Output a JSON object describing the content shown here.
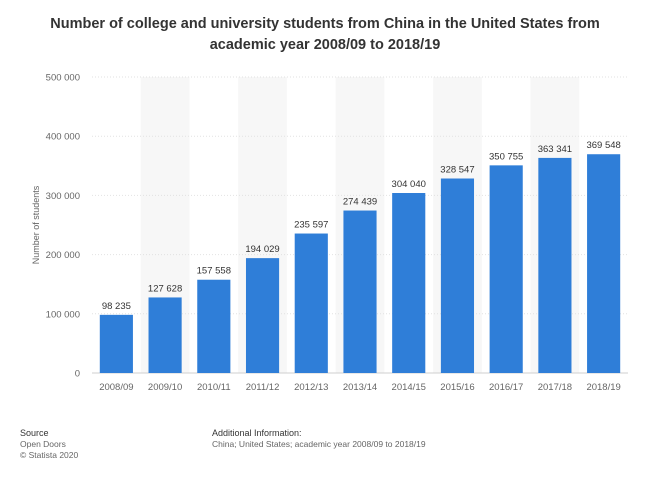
{
  "chart_data": {
    "type": "bar",
    "title": "Number of college and university students from China in the United States from academic year 2008/09 to 2018/19",
    "ylabel": "Number of students",
    "xlabel": "",
    "categories": [
      "2008/09",
      "2009/10",
      "2010/11",
      "2011/12",
      "2012/13",
      "2013/14",
      "2014/15",
      "2015/16",
      "2016/17",
      "2017/18",
      "2018/19"
    ],
    "values": [
      98235,
      127628,
      157558,
      194029,
      235597,
      274439,
      304040,
      328547,
      350755,
      363341,
      369548
    ],
    "value_labels": [
      "98 235",
      "127 628",
      "157 558",
      "194 029",
      "235 597",
      "274 439",
      "304 040",
      "328 547",
      "350 755",
      "363 341",
      "369 548"
    ],
    "ylim": [
      0,
      500000
    ],
    "yticks": [
      0,
      100000,
      200000,
      300000,
      400000,
      500000
    ],
    "ytick_labels": [
      "0",
      "100 000",
      "200 000",
      "300 000",
      "400 000",
      "500 000"
    ],
    "grid": true,
    "bar_color": "#2f7ed8"
  },
  "footer": {
    "source_heading": "Source",
    "source_lines": [
      "Open Doors",
      "© Statista 2020"
    ],
    "info_heading": "Additional Information:",
    "info_text": "China; United States; academic year 2008/09 to 2018/19"
  }
}
